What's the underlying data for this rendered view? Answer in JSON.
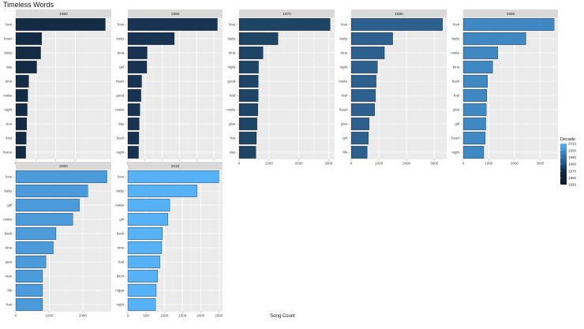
{
  "chart_data": {
    "type": "bar",
    "orientation": "horizontal",
    "title": "Timeless Words",
    "xlabel": "Song Count",
    "ylabel": "",
    "grid": true,
    "legend": {
      "title": "Decade",
      "position": "right",
      "labels": [
        "2010",
        "2000",
        "1990",
        "1980",
        "1970",
        "1960",
        "1950"
      ],
      "colors": [
        "#56b1f7",
        "#4490d0",
        "#336fa9",
        "#235184",
        "#132b43",
        "#0f2236",
        "#0b1a29"
      ]
    },
    "panels": [
      {
        "name": "1950",
        "color": "#132b43",
        "xlim": [
          0,
          960
        ],
        "xticks": [
          0,
          200,
          400,
          600
        ],
        "categories": [
          "love",
          "heart",
          "baby",
          "day",
          "time",
          "make",
          "night",
          "true",
          "kiss",
          "home"
        ],
        "values": [
          900,
          260,
          250,
          210,
          130,
          120,
          115,
          110,
          105,
          100
        ]
      },
      {
        "name": "1960",
        "color": "#173351",
        "xlim": [
          0,
          2750
        ],
        "xticks": [
          0,
          500,
          1000,
          1500,
          2000,
          2500
        ],
        "categories": [
          "love",
          "baby",
          "time",
          "girl",
          "heart",
          "good",
          "make",
          "day",
          "back",
          "night"
        ],
        "values": [
          2600,
          1350,
          560,
          550,
          400,
          380,
          350,
          330,
          320,
          310
        ]
      },
      {
        "name": "1970",
        "color": "#1e4466",
        "xlim": [
          0,
          3200
        ],
        "xticks": [
          0,
          1000,
          2000,
          3000
        ],
        "categories": [
          "love",
          "baby",
          "time",
          "night",
          "good",
          "feel",
          "make",
          "give",
          "live",
          "day"
        ],
        "values": [
          3050,
          1300,
          800,
          650,
          640,
          640,
          630,
          600,
          580,
          560
        ]
      },
      {
        "name": "1980",
        "color": "#2d608f",
        "xlim": [
          0,
          3450
        ],
        "xticks": [
          0,
          1000,
          2000,
          3000
        ],
        "categories": [
          "love",
          "baby",
          "time",
          "night",
          "make",
          "feel",
          "heart",
          "give",
          "girl",
          "life"
        ],
        "values": [
          3300,
          1500,
          1200,
          950,
          900,
          880,
          850,
          650,
          620,
          580
        ]
      },
      {
        "name": "1990",
        "color": "#4088c4",
        "xlim": [
          0,
          3700
        ],
        "xticks": [
          0,
          1000,
          2000,
          3000
        ],
        "categories": [
          "love",
          "baby",
          "make",
          "time",
          "back",
          "feel",
          "give",
          "girl",
          "heart",
          "night"
        ],
        "values": [
          3550,
          2450,
          1350,
          1150,
          950,
          920,
          900,
          880,
          860,
          800
        ]
      },
      {
        "name": "2000",
        "color": "#4b9bdb",
        "xlim": [
          0,
          2850
        ],
        "xticks": [
          0,
          1000,
          2000
        ],
        "categories": [
          "love",
          "baby",
          "girl",
          "make",
          "back",
          "time",
          "give",
          "man",
          "life",
          "feel"
        ],
        "values": [
          2720,
          2150,
          1900,
          1700,
          1200,
          1120,
          900,
          800,
          800,
          800
        ]
      },
      {
        "name": "2010",
        "color": "#56b1f7",
        "xlim": [
          0,
          2600
        ],
        "xticks": [
          0,
          500,
          1000,
          1500,
          2000,
          2500
        ],
        "categories": [
          "love",
          "baby",
          "make",
          "girl",
          "back",
          "time",
          "feel",
          "bitch",
          "nigga",
          "night"
        ],
        "values": [
          2500,
          1900,
          1150,
          1100,
          950,
          930,
          880,
          820,
          780,
          760
        ]
      }
    ]
  }
}
